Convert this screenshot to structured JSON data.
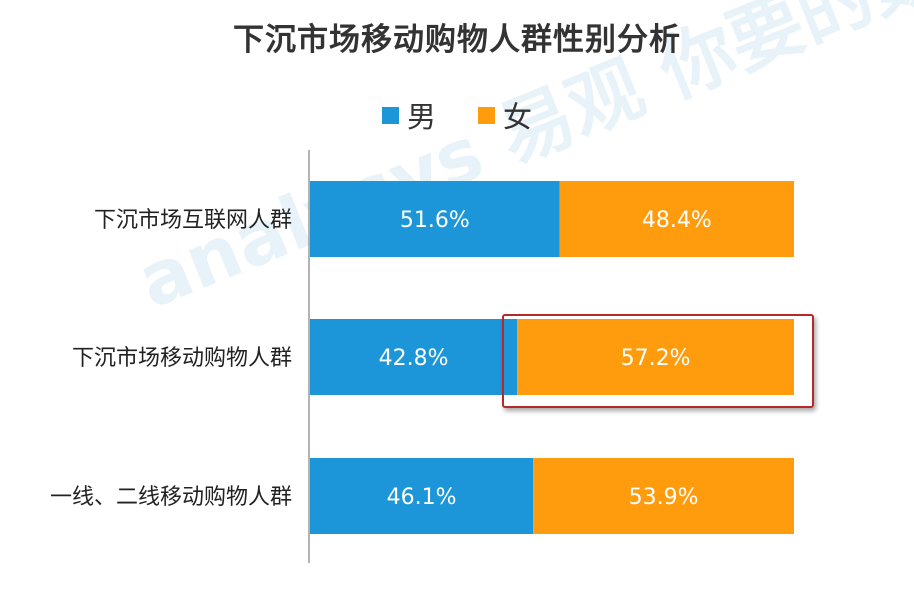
{
  "chart_data": {
    "type": "bar",
    "orientation": "horizontal",
    "stacked": true,
    "title": "下沉市场移动购物人群性别分析",
    "categories": [
      "下沉市场互联网人群",
      "下沉市场移动购物人群",
      "一线、二线移动购物人群"
    ],
    "series": [
      {
        "name": "男",
        "color": "#1C96D8",
        "values": [
          51.6,
          42.8,
          46.1
        ],
        "labels": [
          "51.6%",
          "42.8%",
          "46.1%"
        ]
      },
      {
        "name": "女",
        "color": "#FF9C0E",
        "values": [
          48.4,
          57.2,
          53.9
        ],
        "labels": [
          "48.4%",
          "57.2%",
          "53.9%"
        ]
      }
    ],
    "xlim": [
      0,
      100
    ],
    "legend_position": "top",
    "grid": false,
    "highlight": {
      "category": "下沉市场移动购物人群",
      "series": "女"
    }
  },
  "watermark": "analysys 易观 你要的数据分析"
}
